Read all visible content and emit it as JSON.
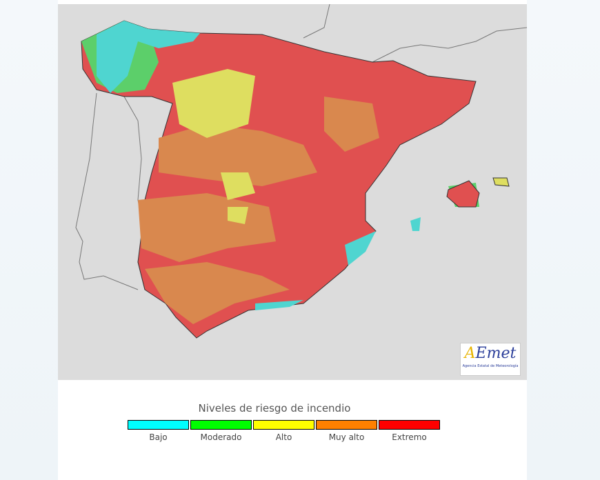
{
  "legend": {
    "title": "Niveles de riesgo de incendio",
    "levels": [
      {
        "label": "Bajo",
        "color": "#00ffff"
      },
      {
        "label": "Moderado",
        "color": "#00ff00"
      },
      {
        "label": "Alto",
        "color": "#ffff00"
      },
      {
        "label": "Muy alto",
        "color": "#ff8000"
      },
      {
        "label": "Extremo",
        "color": "#ff0000"
      }
    ]
  },
  "logo": {
    "name": "AEmet",
    "subtitle": "Agencia Estatal de Meteorología"
  }
}
